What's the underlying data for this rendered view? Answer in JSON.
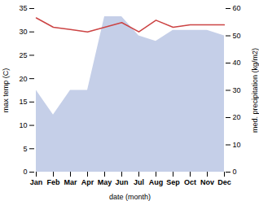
{
  "chart_data": {
    "type": "line",
    "categories": [
      "Jan",
      "Feb",
      "Mar",
      "Apr",
      "May",
      "Jun",
      "Jul",
      "Aug",
      "Sep",
      "Oct",
      "Nov",
      "Dec"
    ],
    "series": [
      {
        "type": "area",
        "axis": "y2",
        "color": "#c5cfe8",
        "values": [
          30,
          21,
          30,
          30,
          57,
          57,
          50,
          48,
          52,
          52,
          52,
          50
        ]
      },
      {
        "type": "line",
        "color": "#cc4444",
        "values": [
          33.0,
          31.0,
          30.5,
          30.0,
          31.0,
          32.0,
          30.0,
          32.5,
          31.0,
          31.5,
          31.5,
          31.5
        ]
      }
    ],
    "xlabel": "date (month)",
    "ylabel": "max temp (C)",
    "y2label": "med. precipitation (kg/m2)",
    "ylim": [
      0,
      35
    ],
    "yticks": [
      0,
      5,
      10,
      15,
      20,
      25,
      30,
      35
    ],
    "y2lim": [
      0,
      60
    ],
    "y2ticks": [
      0,
      10,
      20,
      30,
      40,
      50,
      60
    ],
    "grid": false
  }
}
